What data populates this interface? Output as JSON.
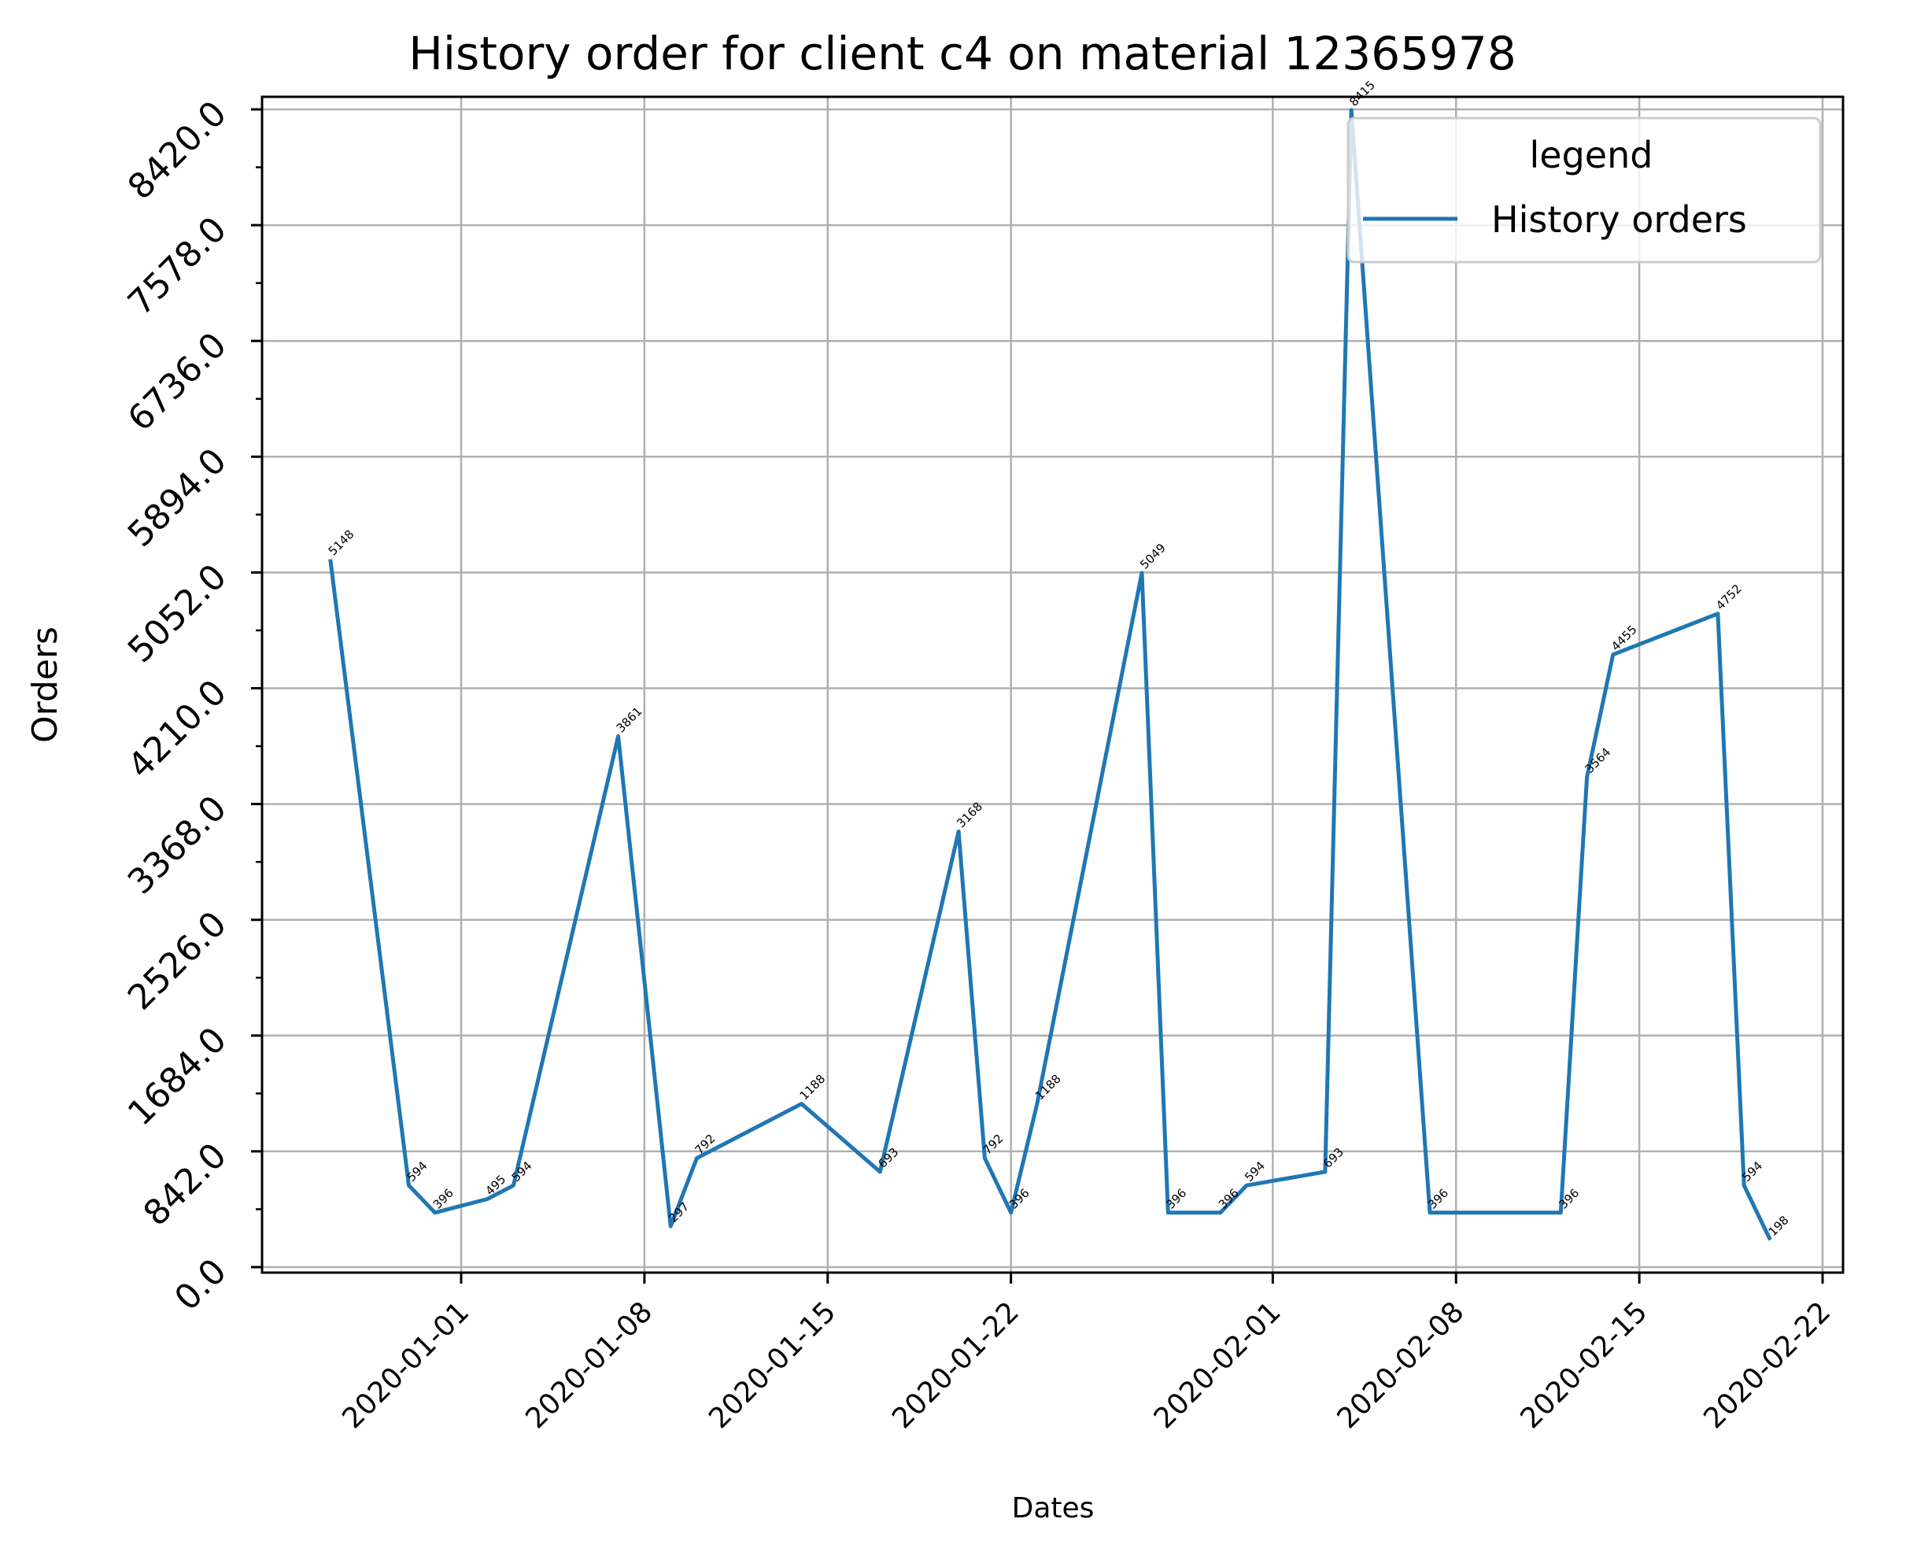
{
  "chart_data": {
    "type": "line",
    "title": "History order for client c4 on material 12365978",
    "xlabel": "Dates",
    "ylabel": "Orders",
    "xlim": [
      "2019-12-24",
      "2020-02-22"
    ],
    "ylim": [
      0,
      8420
    ],
    "yticks": [
      0,
      842,
      1684,
      2526,
      3368,
      4210,
      5052,
      5894,
      6736,
      7578,
      8420
    ],
    "ytick_labels": [
      "0.0",
      "842.0",
      "1684.0",
      "2526.0",
      "3368.0",
      "4210.0",
      "5052.0",
      "5894.0",
      "6736.0",
      "7578.0",
      "8420.0"
    ],
    "xticks": [
      "2020-01-01",
      "2020-01-08",
      "2020-01-15",
      "2020-01-22",
      "2020-02-01",
      "2020-02-08",
      "2020-02-15",
      "2020-02-22"
    ],
    "grid": true,
    "legend": {
      "title": "legend",
      "position": "top-right"
    },
    "series": [
      {
        "name": "History orders",
        "color": "#1f77b4",
        "points": [
          {
            "x": "2019-12-27",
            "y": 5148
          },
          {
            "x": "2019-12-30",
            "y": 594
          },
          {
            "x": "2019-12-31",
            "y": 396
          },
          {
            "x": "2020-01-02",
            "y": 495
          },
          {
            "x": "2020-01-03",
            "y": 594
          },
          {
            "x": "2020-01-07",
            "y": 3861
          },
          {
            "x": "2020-01-09",
            "y": 297
          },
          {
            "x": "2020-01-10",
            "y": 792
          },
          {
            "x": "2020-01-14",
            "y": 1188
          },
          {
            "x": "2020-01-17",
            "y": 693
          },
          {
            "x": "2020-01-20",
            "y": 3168
          },
          {
            "x": "2020-01-21",
            "y": 792
          },
          {
            "x": "2020-01-22",
            "y": 396
          },
          {
            "x": "2020-01-23",
            "y": 1188
          },
          {
            "x": "2020-01-27",
            "y": 5049
          },
          {
            "x": "2020-01-28",
            "y": 396
          },
          {
            "x": "2020-01-30",
            "y": 396
          },
          {
            "x": "2020-01-31",
            "y": 594
          },
          {
            "x": "2020-02-03",
            "y": 693
          },
          {
            "x": "2020-02-04",
            "y": 8415
          },
          {
            "x": "2020-02-07",
            "y": 396
          },
          {
            "x": "2020-02-12",
            "y": 396
          },
          {
            "x": "2020-02-13",
            "y": 3564
          },
          {
            "x": "2020-02-14",
            "y": 4455
          },
          {
            "x": "2020-02-18",
            "y": 4752
          },
          {
            "x": "2020-02-19",
            "y": 594
          },
          {
            "x": "2020-02-20",
            "y": 198
          }
        ]
      }
    ]
  }
}
